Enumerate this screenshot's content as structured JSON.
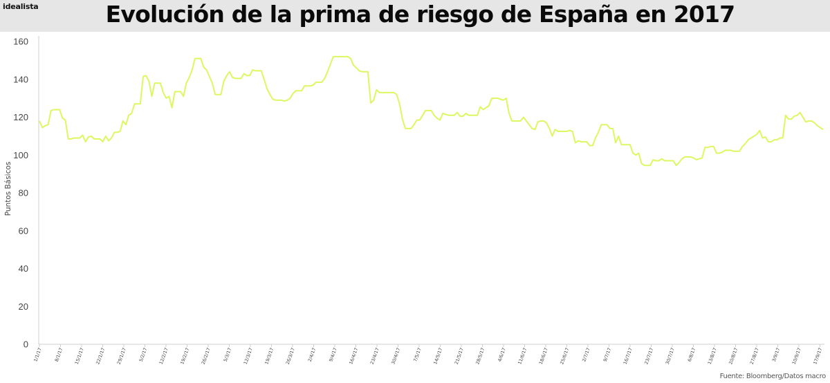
{
  "brand": "idealista",
  "source": "Fuente: Bloomberg/Datos macro",
  "colors": {
    "header_bg": "#e6e6e6",
    "line": "#dcf860",
    "axis": "#cfcfcf"
  },
  "chart_data": {
    "type": "line",
    "title": "Evolución de la prima de riesgo de España en 2017",
    "xlabel": "",
    "ylabel": "Puntos Básicos",
    "ylim": [
      0,
      160
    ],
    "yticks": [
      0,
      20,
      40,
      60,
      80,
      100,
      120,
      140,
      160
    ],
    "grid": false,
    "x_tick_labels": [
      "1/1/17",
      "8/1/17",
      "15/1/17",
      "22/1/17",
      "29/1/17",
      "5/2/17",
      "12/2/17",
      "19/2/17",
      "26/2/17",
      "5/3/17",
      "12/3/17",
      "19/3/17",
      "26/3/17",
      "2/4/17",
      "9/4/17",
      "16/4/17",
      "23/4/17",
      "30/4/17",
      "7/5/17",
      "14/5/17",
      "21/5/17",
      "28/5/17",
      "4/6/17",
      "11/6/17",
      "18/6/17",
      "25/6/17",
      "2/7/17",
      "9/7/17",
      "16/7/17",
      "23/7/17",
      "30/7/17",
      "6/8/17",
      "13/8/17",
      "20/8/17",
      "27/8/17",
      "3/9/17",
      "10/9/17",
      "17/9/17"
    ],
    "series": [
      {
        "values": [
          118,
          114.5,
          115.5,
          116,
          123.5,
          124,
          124,
          124,
          119.5,
          118.5,
          108.5,
          108.5,
          109,
          109,
          109,
          110.5,
          107,
          109.5,
          110,
          108.5,
          108.5,
          108.5,
          107,
          110,
          107.5,
          109,
          112,
          112,
          112.5,
          118,
          116,
          121,
          122,
          127,
          127,
          127,
          141.5,
          142,
          139,
          131,
          138,
          138,
          138,
          133,
          130,
          131,
          125,
          133.5,
          133.5,
          133.5,
          131,
          138,
          141,
          145,
          151,
          151,
          151,
          146.5,
          145,
          141.5,
          138,
          132,
          132,
          132,
          139,
          142,
          144,
          141,
          140.5,
          140.5,
          140.5,
          143,
          142,
          142,
          145,
          144.5,
          144.5,
          144.5,
          140,
          135,
          132,
          129.5,
          129,
          129,
          129,
          128.5,
          129,
          130,
          132.5,
          134,
          134,
          134,
          136.5,
          136.5,
          136.5,
          137,
          138.5,
          138.5,
          138.5,
          140.5,
          144,
          148,
          152,
          152,
          152,
          152,
          152,
          152,
          151,
          147.5,
          146,
          144.5,
          144,
          144,
          144,
          127.5,
          129,
          134.5,
          133,
          133,
          133,
          133,
          133,
          133,
          132,
          127,
          119,
          114,
          114,
          114,
          116,
          118.5,
          118.5,
          121,
          123.5,
          123.5,
          123.5,
          121,
          119.5,
          118.5,
          122,
          121.5,
          121,
          121,
          121,
          122.5,
          120.5,
          120.5,
          122,
          121,
          121,
          121,
          121,
          125.5,
          124,
          125,
          126,
          130,
          130,
          130,
          129.5,
          129,
          130,
          122,
          118,
          118,
          118,
          118,
          120,
          118,
          116,
          114,
          113.5,
          117.5,
          118,
          118,
          117,
          114,
          110,
          113.5,
          112.5,
          112.5,
          112.5,
          112.5,
          113,
          112.5,
          106.5,
          107.5,
          107,
          107,
          107,
          105,
          105,
          109,
          112,
          116,
          116,
          116,
          114,
          114,
          106.5,
          110,
          105.5,
          105.5,
          105.5,
          105.5,
          101,
          100,
          101,
          95.5,
          94.5,
          94.5,
          94.5,
          97.5,
          97,
          97,
          98,
          97,
          97,
          97,
          97,
          94.5,
          96,
          98,
          99,
          99,
          99,
          98.5,
          97.5,
          98,
          98.5,
          104,
          104,
          104.5,
          104.5,
          101,
          101,
          101.5,
          102.5,
          102.5,
          102.5,
          102,
          102,
          102,
          104.5,
          106,
          108,
          109,
          110,
          111,
          113,
          109,
          109.5,
          107,
          107,
          108,
          108,
          109,
          109,
          121,
          119,
          119,
          120.5,
          121,
          122.5,
          120,
          117.5,
          118,
          118,
          117,
          115.5,
          114.5,
          113.5
        ]
      }
    ]
  }
}
